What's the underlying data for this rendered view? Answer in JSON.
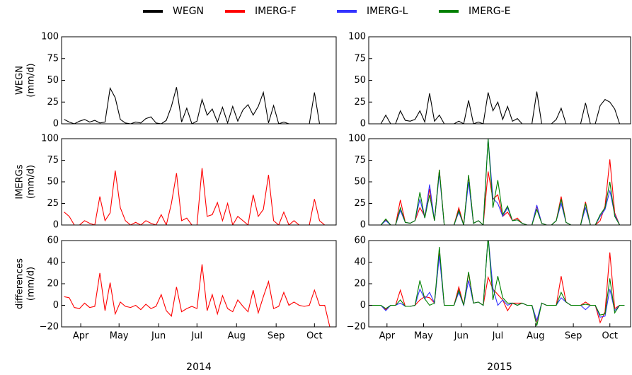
{
  "chart_data": [
    {
      "type": "line",
      "ylabel": [
        "WEGN",
        "(mm/d)"
      ],
      "xlim": [
        90,
        305
      ],
      "ylim": [
        0,
        100
      ],
      "yticks": [
        0,
        25,
        50,
        75,
        100
      ],
      "x": [
        92,
        96,
        100,
        104,
        108,
        112,
        116,
        120,
        124,
        128,
        132,
        136,
        140,
        144,
        148,
        152,
        156,
        160,
        164,
        168,
        172,
        176,
        180,
        184,
        188,
        192,
        196,
        200,
        204,
        208,
        212,
        216,
        220,
        224,
        228,
        232,
        236,
        240,
        244,
        248,
        252,
        256,
        260,
        264,
        268,
        272,
        276,
        280,
        284,
        288,
        292,
        296,
        300
      ],
      "series": [
        {
          "name": "WEGN",
          "color": "#000000",
          "values": [
            5,
            2,
            0,
            3,
            5,
            2,
            4,
            1,
            2,
            41,
            30,
            5,
            1,
            0,
            2,
            1,
            6,
            8,
            1,
            0,
            4,
            20,
            42,
            2,
            18,
            0,
            3,
            28,
            10,
            17,
            2,
            19,
            1,
            20,
            3,
            16,
            22,
            10,
            20,
            36,
            1,
            21,
            0,
            2,
            0,
            0,
            0,
            0,
            0,
            36,
            0,
            0,
            0
          ]
        }
      ]
    },
    {
      "type": "line",
      "ylabel": [
        "IMERGs",
        "(mm/d)"
      ],
      "xlim": [
        90,
        305
      ],
      "ylim": [
        0,
        100
      ],
      "yticks": [
        0,
        25,
        50,
        75,
        100
      ],
      "x": [
        92,
        96,
        100,
        104,
        108,
        112,
        116,
        120,
        124,
        128,
        132,
        136,
        140,
        144,
        148,
        152,
        156,
        160,
        164,
        168,
        172,
        176,
        180,
        184,
        188,
        192,
        196,
        200,
        204,
        208,
        212,
        216,
        220,
        224,
        228,
        232,
        236,
        240,
        244,
        248,
        252,
        256,
        260,
        264,
        268,
        272,
        276,
        280,
        284,
        288,
        292,
        296,
        300
      ],
      "series": [
        {
          "color": "#ff0000",
          "values": [
            15,
            10,
            0,
            0,
            5,
            2,
            0,
            33,
            5,
            14,
            63,
            20,
            5,
            0,
            3,
            0,
            5,
            2,
            0,
            12,
            0,
            25,
            60,
            5,
            8,
            0,
            0,
            66,
            10,
            12,
            26,
            5,
            25,
            0,
            10,
            5,
            0,
            35,
            10,
            18,
            58,
            5,
            0,
            15,
            0,
            5,
            0,
            0,
            0,
            30,
            5,
            0,
            0
          ]
        }
      ]
    },
    {
      "type": "line",
      "ylabel": [
        "differences",
        "(mm/d)"
      ],
      "xlabel": "2014",
      "xlim": [
        90,
        305
      ],
      "ylim": [
        -20,
        60
      ],
      "yticks": [
        {
          "value": -20,
          "label": "−20"
        },
        0,
        20,
        40,
        60
      ],
      "xticks": [
        {
          "value": 105,
          "label": "Apr"
        },
        {
          "value": 135,
          "label": "May"
        },
        {
          "value": 166,
          "label": "Jun"
        },
        {
          "value": 196,
          "label": "Jul"
        },
        {
          "value": 227,
          "label": "Aug"
        },
        {
          "value": 258,
          "label": "Sep"
        },
        {
          "value": 288,
          "label": "Oct"
        }
      ],
      "x": [
        92,
        96,
        100,
        104,
        108,
        112,
        116,
        120,
        124,
        128,
        132,
        136,
        140,
        144,
        148,
        152,
        156,
        160,
        164,
        168,
        172,
        176,
        180,
        184,
        188,
        192,
        196,
        200,
        204,
        208,
        212,
        216,
        220,
        224,
        228,
        232,
        236,
        240,
        244,
        248,
        252,
        256,
        260,
        264,
        268,
        272,
        276,
        280,
        284,
        288,
        292,
        296,
        300
      ],
      "series": [
        {
          "color": "#ff0000",
          "values": [
            8,
            7,
            -2,
            -3,
            2,
            -2,
            -1,
            30,
            -5,
            21,
            -8,
            3,
            -1,
            -2,
            0,
            -4,
            1,
            -3,
            -1,
            10,
            -5,
            -10,
            17,
            -6,
            -3,
            -1,
            -3,
            38,
            -5,
            10,
            -8,
            9,
            -3,
            -6,
            5,
            -1,
            -6,
            14,
            -7,
            8,
            22,
            -3,
            -1,
            12,
            0,
            3,
            0,
            -1,
            0,
            14,
            0,
            0,
            -20
          ]
        }
      ]
    },
    {
      "type": "line",
      "xlim": [
        90,
        305
      ],
      "ylim": [
        0,
        100
      ],
      "yticks": [
        0,
        25,
        50,
        75,
        100
      ],
      "x": [
        92,
        96,
        100,
        104,
        108,
        112,
        116,
        120,
        124,
        128,
        132,
        136,
        140,
        144,
        148,
        152,
        156,
        160,
        164,
        168,
        172,
        176,
        180,
        184,
        188,
        192,
        196,
        200,
        204,
        208,
        212,
        216,
        220,
        224,
        228,
        232,
        236,
        240,
        244,
        248,
        252,
        256,
        260,
        264,
        268,
        272,
        276,
        280,
        284,
        288,
        292,
        296,
        300
      ],
      "series": [
        {
          "color": "#000000",
          "values": [
            0,
            0,
            0,
            10,
            0,
            0,
            15,
            4,
            3,
            5,
            15,
            2,
            35,
            3,
            10,
            0,
            0,
            0,
            3,
            0,
            27,
            0,
            2,
            0,
            36,
            15,
            25,
            5,
            20,
            3,
            6,
            0,
            0,
            0,
            37,
            0,
            0,
            0,
            5,
            18,
            0,
            0,
            0,
            0,
            24,
            0,
            0,
            21,
            28,
            25,
            17,
            0,
            0
          ]
        }
      ]
    },
    {
      "type": "line",
      "xlim": [
        90,
        305
      ],
      "ylim": [
        0,
        100
      ],
      "yticks": [
        0,
        25,
        50,
        75,
        100
      ],
      "x": [
        92,
        96,
        100,
        104,
        108,
        112,
        116,
        120,
        124,
        128,
        132,
        136,
        140,
        144,
        148,
        152,
        156,
        160,
        164,
        168,
        172,
        176,
        180,
        184,
        188,
        192,
        196,
        200,
        204,
        208,
        212,
        216,
        220,
        224,
        228,
        232,
        236,
        240,
        244,
        248,
        252,
        256,
        260,
        264,
        268,
        272,
        276,
        280,
        284,
        288,
        292,
        296,
        300
      ],
      "series": [
        {
          "name": "IMERG-F",
          "color": "#ff0000",
          "values": [
            0,
            0,
            0,
            6,
            0,
            0,
            29,
            3,
            2,
            5,
            20,
            10,
            42,
            5,
            64,
            0,
            0,
            0,
            20,
            0,
            57,
            2,
            5,
            0,
            62,
            30,
            35,
            10,
            15,
            5,
            8,
            2,
            0,
            0,
            22,
            2,
            0,
            0,
            5,
            33,
            3,
            0,
            0,
            0,
            27,
            0,
            0,
            5,
            22,
            76,
            14,
            0,
            0
          ]
        },
        {
          "name": "IMERG-L",
          "color": "#3333ff",
          "values": [
            0,
            0,
            0,
            5,
            0,
            0,
            17,
            3,
            2,
            5,
            30,
            8,
            47,
            5,
            60,
            0,
            0,
            0,
            15,
            0,
            50,
            2,
            5,
            0,
            100,
            31,
            25,
            10,
            20,
            5,
            6,
            2,
            0,
            0,
            23,
            2,
            0,
            0,
            5,
            25,
            3,
            0,
            0,
            0,
            20,
            0,
            0,
            10,
            18,
            40,
            12,
            0,
            0
          ]
        },
        {
          "name": "IMERG-E",
          "color": "#008000",
          "values": [
            0,
            0,
            0,
            7,
            0,
            0,
            20,
            3,
            2,
            5,
            38,
            8,
            35,
            5,
            64,
            0,
            0,
            0,
            17,
            0,
            58,
            2,
            5,
            0,
            100,
            20,
            52,
            12,
            22,
            5,
            6,
            2,
            0,
            0,
            18,
            2,
            0,
            0,
            5,
            30,
            3,
            0,
            0,
            0,
            25,
            0,
            0,
            12,
            20,
            50,
            10,
            0,
            0
          ]
        }
      ]
    },
    {
      "type": "line",
      "xlabel": "2015",
      "xlim": [
        90,
        305
      ],
      "ylim": [
        -20,
        60
      ],
      "yticks": [
        {
          "value": -20,
          "label": "−20"
        },
        0,
        20,
        40,
        60
      ],
      "xticks": [
        {
          "value": 105,
          "label": "Apr"
        },
        {
          "value": 135,
          "label": "May"
        },
        {
          "value": 166,
          "label": "Jun"
        },
        {
          "value": 196,
          "label": "Jul"
        },
        {
          "value": 227,
          "label": "Aug"
        },
        {
          "value": 258,
          "label": "Sep"
        },
        {
          "value": 288,
          "label": "Oct"
        }
      ],
      "x": [
        92,
        96,
        100,
        104,
        108,
        112,
        116,
        120,
        124,
        128,
        132,
        136,
        140,
        144,
        148,
        152,
        156,
        160,
        164,
        168,
        172,
        176,
        180,
        184,
        188,
        192,
        196,
        200,
        204,
        208,
        212,
        216,
        220,
        224,
        228,
        232,
        236,
        240,
        244,
        248,
        252,
        256,
        260,
        264,
        268,
        272,
        276,
        280,
        284,
        288,
        292,
        296,
        300
      ],
      "series": [
        {
          "color": "#ff0000",
          "values": [
            0,
            0,
            0,
            -4,
            0,
            0,
            14,
            -1,
            -1,
            0,
            5,
            8,
            7,
            2,
            48,
            0,
            0,
            0,
            17,
            0,
            30,
            2,
            3,
            0,
            26,
            15,
            10,
            5,
            -5,
            2,
            2,
            2,
            0,
            0,
            -15,
            2,
            0,
            0,
            0,
            27,
            3,
            0,
            0,
            0,
            3,
            0,
            0,
            -16,
            -6,
            49,
            -3,
            0,
            0
          ]
        },
        {
          "color": "#3333ff",
          "values": [
            0,
            0,
            0,
            -5,
            0,
            0,
            2,
            -1,
            -1,
            0,
            15,
            6,
            12,
            2,
            46,
            0,
            0,
            0,
            12,
            0,
            23,
            2,
            3,
            0,
            64,
            16,
            0,
            5,
            0,
            2,
            0,
            2,
            0,
            0,
            -14,
            2,
            0,
            0,
            0,
            7,
            3,
            0,
            0,
            0,
            -4,
            0,
            0,
            -11,
            -10,
            15,
            -5,
            0,
            0
          ]
        },
        {
          "color": "#008000",
          "values": [
            0,
            0,
            0,
            -3,
            0,
            0,
            5,
            -1,
            -1,
            0,
            23,
            6,
            0,
            2,
            54,
            0,
            0,
            0,
            14,
            0,
            31,
            2,
            3,
            0,
            64,
            5,
            27,
            7,
            2,
            2,
            0,
            2,
            0,
            0,
            -19,
            2,
            0,
            0,
            0,
            12,
            3,
            0,
            0,
            0,
            1,
            0,
            0,
            -9,
            -8,
            25,
            -7,
            0,
            0
          ]
        }
      ]
    }
  ]
}
